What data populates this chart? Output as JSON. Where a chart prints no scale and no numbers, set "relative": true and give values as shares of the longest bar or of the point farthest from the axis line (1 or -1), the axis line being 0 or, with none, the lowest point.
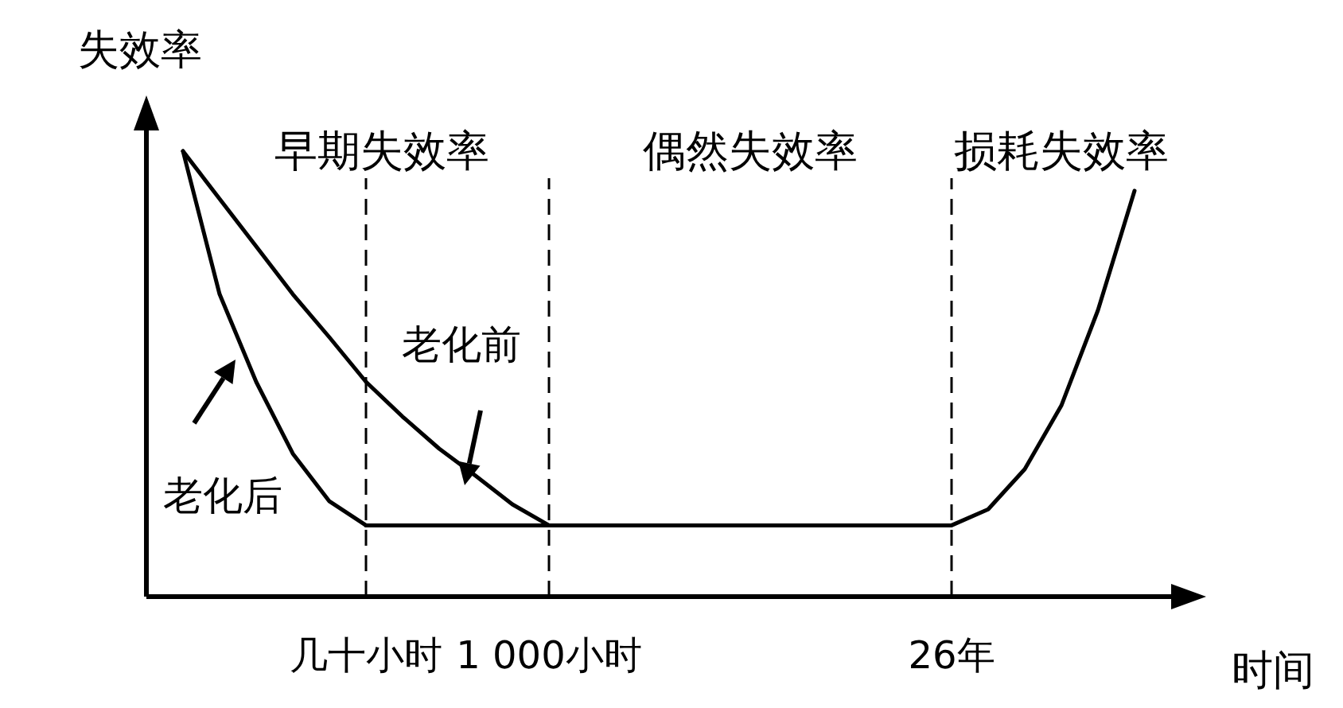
{
  "chart_data": {
    "type": "line",
    "relative": true,
    "ylabel": "失效率",
    "xlabel": "时间",
    "categories": [
      null,
      null,
      null,
      null,
      null,
      "几十小时",
      null,
      null,
      null,
      null,
      "1 000小时",
      null,
      null,
      null,
      null,
      null,
      null,
      null,
      null,
      null,
      null,
      "26年",
      null,
      null,
      null,
      null,
      null
    ],
    "annotations": [
      "早期失效率",
      "偶然失效率",
      "损耗失效率"
    ],
    "ref_lines": [
      {
        "axis": "x",
        "value": "几十小时",
        "line_style": "dashed"
      },
      {
        "axis": "x",
        "value": "1 000小时",
        "line_style": "dashed"
      },
      {
        "axis": "x",
        "value": "26年",
        "line_style": "dashed"
      }
    ],
    "series": [
      {
        "name": "老化前",
        "color": "#000000",
        "values": [
          1,
          0.893,
          0.786,
          0.679,
          0.582,
          0.482,
          0.404,
          0.332,
          0.271,
          0.207,
          0.16,
          null,
          null,
          null,
          null,
          null,
          null,
          null,
          null,
          null,
          null,
          null,
          null,
          null,
          null,
          null,
          null
        ]
      },
      {
        "name": "老化后",
        "color": "#000000",
        "values": [
          1,
          0.679,
          0.482,
          0.321,
          0.214,
          0.16,
          null,
          null,
          null,
          null,
          null,
          null,
          null,
          null,
          null,
          null,
          null,
          null,
          null,
          null,
          null,
          null,
          null,
          null,
          null,
          null,
          null
        ]
      },
      {
        "color": "#000000",
        "values": [
          null,
          null,
          null,
          null,
          null,
          0.16,
          0.16,
          0.16,
          0.16,
          0.16,
          0.16,
          0.16,
          0.16,
          0.16,
          0.16,
          0.16,
          0.16,
          0.16,
          0.16,
          0.16,
          0.16,
          0.16,
          0.196,
          0.286,
          0.429,
          0.643,
          0.911
        ]
      }
    ],
    "line_style": "solid"
  }
}
